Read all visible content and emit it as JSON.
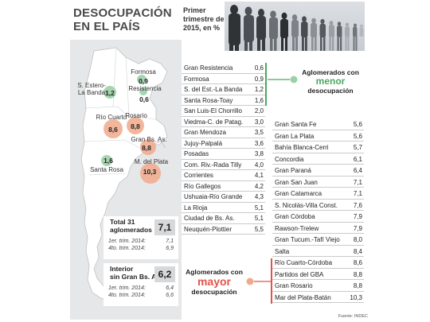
{
  "header": {
    "title_line1": "DESOCUPACIÓN",
    "title_line2": "EN EL PAÍS",
    "subtitle_line1": "Primer",
    "subtitle_line2": "trimestre de",
    "subtitle_line3": "2015, en %"
  },
  "map": {
    "points": [
      {
        "name": "Formosa",
        "value": "0,9",
        "kind": "low"
      },
      {
        "name": "S. Estero-La Banda",
        "value": "1,2",
        "kind": "low"
      },
      {
        "name": "Resistencia",
        "value": "0,6",
        "kind": "low"
      },
      {
        "name": "Río Cuarto",
        "value": "8,6",
        "kind": "high"
      },
      {
        "name": "Rosario",
        "value": "8,8",
        "kind": "high"
      },
      {
        "name": "Gran Bs. As.",
        "value": "8,8",
        "kind": "high"
      },
      {
        "name": "M. del Plata",
        "value": "10,3",
        "kind": "high"
      },
      {
        "name": "Santa Rosa",
        "value": "1,6",
        "kind": "low"
      }
    ],
    "colors": {
      "low": "#4aa862",
      "high": "#f0a98c",
      "land": "#ffffff",
      "panel": "#e6e7e8"
    }
  },
  "stats": {
    "total": {
      "label_line1": "Total 31",
      "label_line2": "aglomerados",
      "value": "7,1",
      "history": [
        {
          "period": "1er. trim. 2014:",
          "value": "7,1"
        },
        {
          "period": "4to. trim. 2014:",
          "value": "6,9"
        }
      ]
    },
    "interior": {
      "label_line1": "Interior",
      "label_line2": "sin Gran Bs. As.",
      "value": "6,2",
      "history": [
        {
          "period": "1er. trim. 2014:",
          "value": "6,4"
        },
        {
          "period": "4to. trim. 2014:",
          "value": "6,6"
        }
      ]
    }
  },
  "table_left": [
    {
      "name": "Gran Resistencia",
      "value": "0,6"
    },
    {
      "name": "Formosa",
      "value": "0,9"
    },
    {
      "name": "S. del Est.-La Banda",
      "value": "1,2"
    },
    {
      "name": "Santa Rosa-Toay",
      "value": "1,6"
    },
    {
      "name": "San Luis-El Chorrillo",
      "value": "2,0"
    },
    {
      "name": "Viedma-C. de Patag.",
      "value": "3,0"
    },
    {
      "name": "Gran Mendoza",
      "value": "3,5"
    },
    {
      "name": "Jujuy-Palpalá",
      "value": "3,6"
    },
    {
      "name": "Posadas",
      "value": "3,8"
    },
    {
      "name": "Com. Riv.-Rada Tilly",
      "value": "4,0"
    },
    {
      "name": "Corrientes",
      "value": "4,1"
    },
    {
      "name": "Río Gallegos",
      "value": "4,2"
    },
    {
      "name": "Ushuaia-Río Grande",
      "value": "4,3"
    },
    {
      "name": "La Rioja",
      "value": "5,1"
    },
    {
      "name": "Ciudad de Bs. As.",
      "value": "5,1"
    },
    {
      "name": "Neuquén-Plottier",
      "value": "5,5"
    }
  ],
  "table_right": [
    {
      "name": "Gran Santa Fe",
      "value": "5,6"
    },
    {
      "name": "Gran La Plata",
      "value": "5,6"
    },
    {
      "name": "Bahía Blanca-Cerri",
      "value": "5,7"
    },
    {
      "name": "Concordia",
      "value": "6,1"
    },
    {
      "name": "Gran Paraná",
      "value": "6,4"
    },
    {
      "name": "Gran San Juan",
      "value": "7,1"
    },
    {
      "name": "Gran Catamarca",
      "value": "7,1"
    },
    {
      "name": "S. Nicolás-Villa Const.",
      "value": "7,6"
    },
    {
      "name": "Gran Córdoba",
      "value": "7,9"
    },
    {
      "name": "Rawson-Trelew",
      "value": "7,9"
    },
    {
      "name": "Gran Tucum.-Tafí Viejo",
      "value": "8,0"
    },
    {
      "name": "Salta",
      "value": "8,4"
    },
    {
      "name": "Río Cuarto-Córdoba",
      "value": "8,6"
    },
    {
      "name": "Partidos del GBA",
      "value": "8,8"
    },
    {
      "name": "Gran Rosario",
      "value": "8,8"
    },
    {
      "name": "Mar del Plata-Batán",
      "value": "10,3"
    }
  ],
  "callouts": {
    "low": {
      "line1": "Aglomerados con",
      "big": "menor",
      "line3": "desocupación"
    },
    "high": {
      "line1": "Aglomerados con",
      "big": "mayor",
      "line3": "desocupación"
    }
  },
  "source": "Fuente: INDEC"
}
